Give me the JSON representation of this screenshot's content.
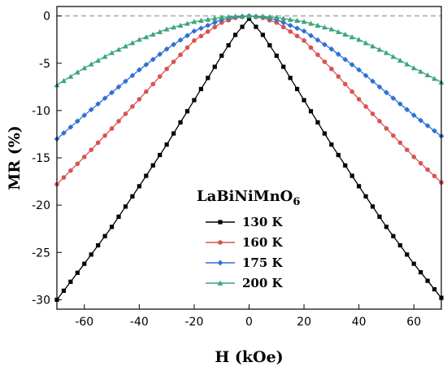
{
  "chart_data": {
    "type": "line",
    "xlabel": "H (kOe)",
    "ylabel": "MR (%)",
    "xlim": [
      -70,
      70
    ],
    "ylim": [
      -31,
      1
    ],
    "xticks": [
      -60,
      -40,
      -20,
      0,
      20,
      40,
      60
    ],
    "yticks": [
      0,
      -5,
      -10,
      -15,
      -20,
      -25,
      -30
    ],
    "grid": false,
    "legend_position": "center",
    "legend_title": "LaBiNiMnO",
    "legend_title_subscript": "6",
    "reference_line_y": 0,
    "series": [
      {
        "name": "130 K",
        "color": "#000000",
        "marker": "square",
        "x": [
          -70,
          -60,
          -50,
          -40,
          -30,
          -20,
          -10,
          -5,
          0,
          5,
          10,
          20,
          30,
          40,
          50,
          60,
          70
        ],
        "y": [
          -30.0,
          -26.2,
          -22.3,
          -18.0,
          -13.6,
          -8.9,
          -4.2,
          -2.0,
          -0.3,
          -2.0,
          -4.2,
          -8.9,
          -13.6,
          -18.0,
          -22.3,
          -26.2,
          -29.8
        ]
      },
      {
        "name": "160 K",
        "color": "#d9534f",
        "marker": "circle",
        "x": [
          -70,
          -60,
          -50,
          -40,
          -30,
          -20,
          -10,
          -5,
          0,
          5,
          10,
          20,
          30,
          40,
          50,
          60,
          70
        ],
        "y": [
          -17.8,
          -14.9,
          -11.9,
          -8.8,
          -5.6,
          -2.6,
          -0.7,
          -0.2,
          0.0,
          -0.2,
          -0.7,
          -2.6,
          -5.6,
          -8.8,
          -11.9,
          -14.9,
          -17.6
        ]
      },
      {
        "name": "175 K",
        "color": "#2f6fd6",
        "marker": "diamond",
        "x": [
          -70,
          -60,
          -50,
          -40,
          -30,
          -20,
          -10,
          -5,
          0,
          5,
          10,
          20,
          30,
          40,
          50,
          60,
          70
        ],
        "y": [
          -13.0,
          -10.5,
          -8.1,
          -5.7,
          -3.5,
          -1.6,
          -0.4,
          -0.1,
          0.0,
          -0.1,
          -0.4,
          -1.6,
          -3.5,
          -5.7,
          -8.1,
          -10.5,
          -12.7
        ]
      },
      {
        "name": "200 K",
        "color": "#3aa57a",
        "marker": "triangle",
        "x": [
          -70,
          -60,
          -50,
          -40,
          -30,
          -20,
          -10,
          -5,
          0,
          5,
          10,
          20,
          30,
          40,
          50,
          60,
          70
        ],
        "y": [
          -7.3,
          -5.5,
          -3.9,
          -2.5,
          -1.4,
          -0.6,
          -0.15,
          -0.04,
          0.0,
          -0.04,
          -0.15,
          -0.6,
          -1.4,
          -2.5,
          -3.9,
          -5.5,
          -7.0
        ]
      }
    ]
  }
}
